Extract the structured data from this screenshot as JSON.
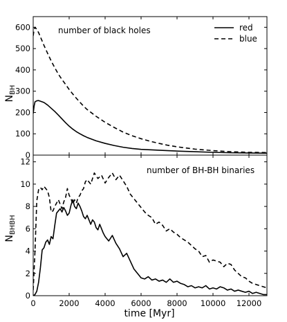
{
  "chart_data": [
    {
      "type": "line",
      "title": "number of black holes",
      "xlabel": "",
      "ylabel": "N",
      "ylabel_sub": "BH",
      "xlim": [
        0,
        13000
      ],
      "ylim": [
        0,
        650
      ],
      "xticks": [
        0,
        2000,
        4000,
        6000,
        8000,
        10000,
        12000
      ],
      "yticks": [
        0,
        100,
        200,
        300,
        400,
        500,
        600
      ],
      "yticklabels": [
        "0",
        "100",
        "200",
        "300",
        "400",
        "500",
        "600"
      ],
      "grid": false,
      "legend": {
        "position": "top-right",
        "entries": [
          {
            "label": "red",
            "style": "solid"
          },
          {
            "label": "blue",
            "style": "dashed"
          }
        ]
      },
      "series": [
        {
          "name": "red",
          "style": "solid",
          "color": "#000000",
          "x": [
            0,
            50,
            100,
            200,
            300,
            400,
            600,
            800,
            1000,
            1200,
            1400,
            1600,
            1800,
            2000,
            2200,
            2400,
            2600,
            2800,
            3000,
            3500,
            4000,
            4500,
            5000,
            5500,
            6000,
            6500,
            7000,
            7500,
            8000,
            9000,
            10000,
            11000,
            12000,
            13000
          ],
          "y": [
            195,
            230,
            250,
            255,
            256,
            253,
            247,
            235,
            220,
            205,
            188,
            170,
            152,
            136,
            122,
            110,
            100,
            91,
            83,
            67,
            55,
            45,
            37,
            31,
            27,
            25,
            23,
            21,
            19,
            16,
            13,
            11,
            10,
            9
          ]
        },
        {
          "name": "blue",
          "style": "dashed",
          "color": "#000000",
          "x": [
            0,
            50,
            100,
            200,
            300,
            400,
            600,
            800,
            1000,
            1200,
            1400,
            1600,
            1800,
            2000,
            2200,
            2400,
            2600,
            2800,
            3000,
            3500,
            4000,
            4500,
            5000,
            5500,
            6000,
            6500,
            7000,
            7500,
            8000,
            9000,
            10000,
            11000,
            12000,
            13000
          ],
          "y": [
            560,
            590,
            600,
            590,
            575,
            555,
            515,
            478,
            442,
            410,
            380,
            355,
            332,
            308,
            287,
            267,
            248,
            230,
            214,
            182,
            154,
            130,
            108,
            91,
            77,
            65,
            55,
            46,
            39,
            28,
            21,
            16,
            13,
            12
          ]
        }
      ]
    },
    {
      "type": "line",
      "title": "number of BH-BH binaries",
      "xlabel": "time [Myr]",
      "ylabel": "N",
      "ylabel_sub": "BHBH",
      "xlim": [
        0,
        13000
      ],
      "ylim": [
        0,
        12.6
      ],
      "xticks": [
        0,
        2000,
        4000,
        6000,
        8000,
        10000,
        12000
      ],
      "xticklabels": [
        "0",
        "2000",
        "4000",
        "6000",
        "8000",
        "10000",
        "12000"
      ],
      "yticks": [
        0,
        2,
        4,
        6,
        8,
        10,
        12
      ],
      "yticklabels": [
        "0",
        "2",
        "4",
        "6",
        "8",
        "10",
        "12"
      ],
      "grid": false,
      "series": [
        {
          "name": "red",
          "style": "solid",
          "color": "#000000",
          "x": [
            0,
            100,
            200,
            300,
            400,
            500,
            600,
            700,
            800,
            900,
            1000,
            1100,
            1200,
            1300,
            1400,
            1500,
            1600,
            1700,
            1800,
            1900,
            2000,
            2100,
            2200,
            2300,
            2400,
            2500,
            2600,
            2700,
            2800,
            2900,
            3000,
            3100,
            3200,
            3300,
            3400,
            3500,
            3600,
            3700,
            3800,
            3900,
            4000,
            4200,
            4400,
            4600,
            4800,
            5000,
            5200,
            5400,
            5600,
            5800,
            6000,
            6200,
            6400,
            6600,
            6800,
            7000,
            7200,
            7400,
            7600,
            7800,
            8000,
            8200,
            8400,
            8600,
            8800,
            9000,
            9200,
            9400,
            9600,
            9800,
            10000,
            10200,
            10400,
            10600,
            10800,
            11000,
            11200,
            11400,
            11600,
            11800,
            12000,
            12200,
            12400,
            12600,
            12800,
            13000
          ],
          "y": [
            0,
            0.1,
            0.4,
            1.2,
            2.5,
            4.1,
            4.3,
            4.8,
            5.0,
            4.6,
            5.3,
            5.1,
            6.3,
            7.4,
            7.6,
            7.8,
            7.5,
            7.9,
            7.6,
            7.2,
            7.4,
            8.1,
            8.6,
            8.0,
            7.8,
            8.3,
            8.0,
            7.6,
            7.1,
            6.9,
            7.2,
            6.8,
            6.4,
            6.8,
            6.6,
            6.1,
            5.9,
            6.4,
            6.0,
            5.6,
            5.3,
            4.9,
            5.4,
            4.7,
            4.2,
            3.5,
            3.8,
            3.1,
            2.4,
            2.0,
            1.6,
            1.5,
            1.7,
            1.4,
            1.5,
            1.3,
            1.4,
            1.2,
            1.5,
            1.2,
            1.3,
            1.1,
            1.0,
            0.8,
            0.9,
            0.7,
            0.8,
            0.7,
            0.9,
            0.6,
            0.7,
            0.6,
            0.8,
            0.7,
            0.5,
            0.6,
            0.4,
            0.5,
            0.4,
            0.3,
            0.4,
            0.2,
            0.3,
            0.2,
            0.1,
            0.1
          ]
        },
        {
          "name": "blue",
          "style": "dashed",
          "color": "#000000",
          "x": [
            0,
            100,
            200,
            300,
            400,
            500,
            600,
            700,
            800,
            900,
            1000,
            1100,
            1200,
            1300,
            1400,
            1500,
            1600,
            1700,
            1800,
            1900,
            2000,
            2100,
            2200,
            2300,
            2400,
            2500,
            2600,
            2700,
            2800,
            2900,
            3000,
            3200,
            3400,
            3600,
            3800,
            4000,
            4200,
            4400,
            4600,
            4800,
            5000,
            5200,
            5400,
            5600,
            5800,
            6000,
            6200,
            6400,
            6600,
            6800,
            7000,
            7200,
            7400,
            7600,
            7800,
            8000,
            8200,
            8400,
            8600,
            8800,
            9000,
            9200,
            9400,
            9600,
            9800,
            10000,
            10200,
            10400,
            10600,
            10800,
            11000,
            11200,
            11400,
            11600,
            11800,
            12000,
            12200,
            12400,
            12600,
            12800,
            13000
          ],
          "y": [
            0.5,
            4.0,
            8.5,
            9.5,
            9.7,
            9.5,
            9.8,
            9.6,
            9.4,
            8.8,
            7.5,
            7.6,
            8.0,
            8.3,
            8.6,
            8.2,
            7.8,
            8.4,
            8.8,
            9.6,
            9.0,
            8.7,
            8.2,
            8.6,
            8.3,
            8.8,
            9.0,
            9.4,
            9.6,
            10.2,
            10.4,
            10.0,
            11.0,
            10.5,
            10.8,
            10.1,
            10.6,
            11.0,
            10.4,
            10.8,
            10.3,
            9.8,
            9.1,
            8.7,
            8.3,
            7.9,
            7.5,
            7.2,
            7.0,
            6.4,
            6.6,
            6.3,
            5.8,
            6.0,
            5.7,
            5.5,
            5.2,
            5.0,
            4.8,
            4.5,
            4.2,
            4.0,
            3.5,
            3.6,
            3.0,
            3.2,
            3.1,
            3.0,
            2.6,
            2.9,
            2.8,
            2.3,
            2.0,
            1.7,
            1.6,
            1.3,
            1.1,
            1.0,
            0.9,
            0.8,
            0.7
          ]
        }
      ]
    }
  ]
}
